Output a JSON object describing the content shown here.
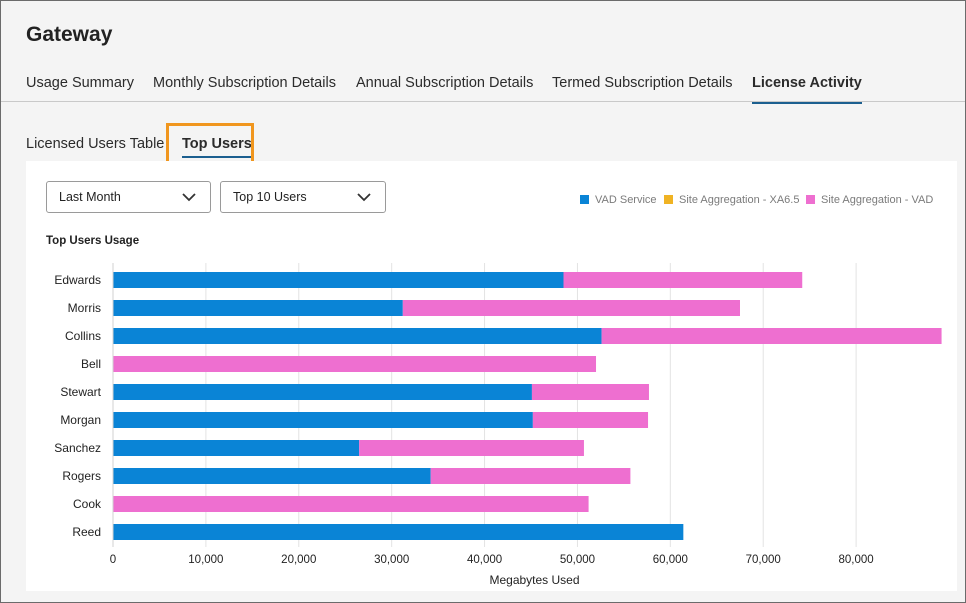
{
  "app": {
    "title": "Gateway"
  },
  "tabs": [
    {
      "label": "Usage Summary",
      "active": false
    },
    {
      "label": "Monthly Subscription Details",
      "active": false
    },
    {
      "label": "Annual Subscription Details",
      "active": false
    },
    {
      "label": "Termed Subscription Details",
      "active": false
    },
    {
      "label": "License Activity",
      "active": true
    }
  ],
  "subtabs": [
    {
      "label": "Licensed Users Table",
      "active": false
    },
    {
      "label": "Top Users",
      "active": true
    }
  ],
  "filters": {
    "period": {
      "selected": "Last Month",
      "icon": "chevron-down-icon"
    },
    "count": {
      "selected": "Top 10 Users",
      "icon": "chevron-down-icon"
    }
  },
  "legend": [
    {
      "name": "VAD Service",
      "color": "#0a84d6"
    },
    {
      "name": "Site Aggregation - XA6.5",
      "color": "#f0b323"
    },
    {
      "name": "Site Aggregation - VAD",
      "color": "#ee6fd0"
    }
  ],
  "accent": "#f0961e",
  "chart_data": {
    "type": "bar",
    "orientation": "horizontal",
    "stacked": true,
    "title": "Top Users Usage",
    "xlabel": "Megabytes Used",
    "ylabel": "",
    "xlim": [
      0,
      90000
    ],
    "xticks": [
      0,
      10000,
      20000,
      30000,
      40000,
      50000,
      60000,
      70000,
      80000
    ],
    "xtick_labels": [
      "0",
      "10,000",
      "20,000",
      "30,000",
      "40,000",
      "50,000",
      "60,000",
      "70,000",
      "80,000"
    ],
    "grid": true,
    "legend_position": "top-right",
    "categories": [
      "Edwards",
      "Morris",
      "Collins",
      "Bell",
      "Stewart",
      "Morgan",
      "Sanchez",
      "Rogers",
      "Cook",
      "Reed"
    ],
    "series": [
      {
        "name": "VAD Service",
        "color": "#0a84d6",
        "values": [
          48500,
          31200,
          52600,
          0,
          45100,
          45200,
          26500,
          34200,
          0,
          61400
        ]
      },
      {
        "name": "Site Aggregation - XA6.5",
        "color": "#f0b323",
        "values": [
          0,
          0,
          0,
          0,
          0,
          0,
          0,
          0,
          0,
          0
        ]
      },
      {
        "name": "Site Aggregation - VAD",
        "color": "#ee6fd0",
        "values": [
          25700,
          36300,
          36600,
          52000,
          12600,
          12400,
          24200,
          21500,
          51200,
          0
        ]
      }
    ]
  }
}
